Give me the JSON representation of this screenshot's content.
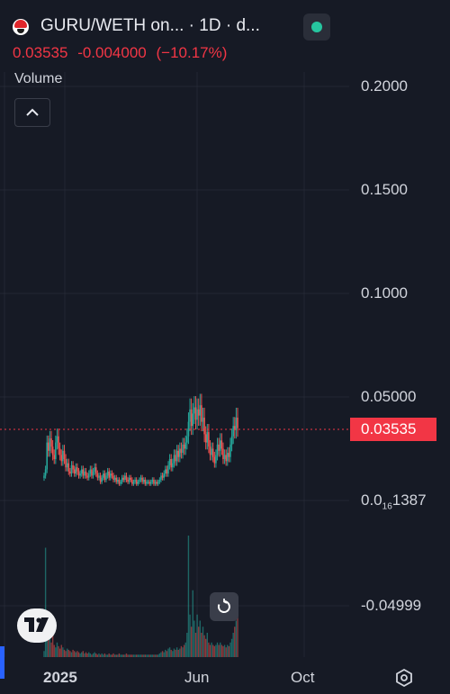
{
  "header": {
    "title": "GURU/WETH on... · 1D · d...",
    "last_price": "0.03535",
    "change": "-0.004000",
    "change_pct": "(−10.17%)",
    "logo_icon": "guru-token-logo-icon",
    "status_icon": "market-status-dot-icon"
  },
  "volume_label": "Volume",
  "y_axis": {
    "labels": [
      {
        "text": "0.2000",
        "value": 0.2
      },
      {
        "text": "0.1500",
        "value": 0.15
      },
      {
        "text": "0.1000",
        "value": 0.1
      },
      {
        "text": "0.05000",
        "value": 0.05
      },
      {
        "text_base": "0.0",
        "text_sub": "16",
        "text_rest": "1387",
        "value": 0.0
      },
      {
        "text": "-0.04999",
        "value": -0.05
      }
    ],
    "range": [
      -0.06,
      0.21
    ]
  },
  "price_tag": "0.03535",
  "x_axis": {
    "labels": [
      "2025",
      "Jun",
      "Oct"
    ]
  },
  "colors": {
    "background": "#161a25",
    "up": "#26a69a",
    "down": "#ef5350",
    "price_tag": "#f23645",
    "status": "#26c6a0"
  },
  "chart_data": {
    "type": "candlestick",
    "series_note": "",
    "x_start_label": "2025",
    "close_series": [
      0.012,
      0.015,
      0.028,
      0.024,
      0.03,
      0.026,
      0.022,
      0.02,
      0.028,
      0.031,
      0.025,
      0.022,
      0.019,
      0.024,
      0.02,
      0.016,
      0.018,
      0.014,
      0.013,
      0.017,
      0.015,
      0.013,
      0.016,
      0.014,
      0.012,
      0.013,
      0.015,
      0.012,
      0.014,
      0.012,
      0.011,
      0.013,
      0.015,
      0.012,
      0.014,
      0.016,
      0.013,
      0.011,
      0.012,
      0.009,
      0.011,
      0.013,
      0.01,
      0.012,
      0.014,
      0.011,
      0.013,
      0.012,
      0.01,
      0.011,
      0.009,
      0.01,
      0.008,
      0.009,
      0.011,
      0.01,
      0.012,
      0.01,
      0.009,
      0.011,
      0.01,
      0.008,
      0.009,
      0.01,
      0.008,
      0.009,
      0.01,
      0.011,
      0.009,
      0.01,
      0.008,
      0.009,
      0.009,
      0.008,
      0.009,
      0.01,
      0.008,
      0.009,
      0.008,
      0.009,
      0.01,
      0.012,
      0.011,
      0.013,
      0.015,
      0.013,
      0.017,
      0.02,
      0.016,
      0.018,
      0.022,
      0.019,
      0.024,
      0.021,
      0.025,
      0.023,
      0.027,
      0.025,
      0.028,
      0.031,
      0.038,
      0.044,
      0.036,
      0.042,
      0.045,
      0.039,
      0.044,
      0.041,
      0.046,
      0.038,
      0.04,
      0.032,
      0.028,
      0.033,
      0.026,
      0.022,
      0.025,
      0.021,
      0.018,
      0.022,
      0.027,
      0.024,
      0.029,
      0.025,
      0.02,
      0.022,
      0.019,
      0.023,
      0.021,
      0.027,
      0.031,
      0.036,
      0.034,
      0.04,
      0.035
    ],
    "volume_series": [
      0.05,
      0.9,
      0.3,
      0.2,
      0.15,
      0.12,
      0.2,
      0.1,
      0.08,
      0.12,
      0.09,
      0.07,
      0.1,
      0.08,
      0.06,
      0.05,
      0.07,
      0.06,
      0.05,
      0.04,
      0.06,
      0.05,
      0.04,
      0.05,
      0.04,
      0.03,
      0.04,
      0.05,
      0.03,
      0.04,
      0.03,
      0.04,
      0.03,
      0.02,
      0.03,
      0.04,
      0.03,
      0.02,
      0.03,
      0.02,
      0.03,
      0.02,
      0.03,
      0.02,
      0.02,
      0.03,
      0.02,
      0.02,
      0.03,
      0.02,
      0.02,
      0.02,
      0.03,
      0.02,
      0.02,
      0.02,
      0.02,
      0.03,
      0.02,
      0.02,
      0.02,
      0.02,
      0.02,
      0.02,
      0.02,
      0.02,
      0.02,
      0.02,
      0.02,
      0.02,
      0.02,
      0.02,
      0.02,
      0.02,
      0.02,
      0.02,
      0.02,
      0.02,
      0.02,
      0.02,
      0.03,
      0.04,
      0.05,
      0.04,
      0.06,
      0.05,
      0.07,
      0.08,
      0.06,
      0.05,
      0.07,
      0.06,
      0.08,
      0.06,
      0.07,
      0.09,
      0.08,
      0.1,
      0.12,
      0.2,
      1.0,
      0.35,
      0.25,
      0.55,
      0.3,
      0.2,
      0.35,
      0.25,
      0.3,
      0.2,
      0.25,
      0.18,
      0.15,
      0.2,
      0.12,
      0.1,
      0.12,
      0.1,
      0.09,
      0.1,
      0.12,
      0.1,
      0.12,
      0.1,
      0.09,
      0.1,
      0.08,
      0.1,
      0.09,
      0.12,
      0.15,
      0.2,
      0.25,
      0.3,
      0.35
    ]
  }
}
